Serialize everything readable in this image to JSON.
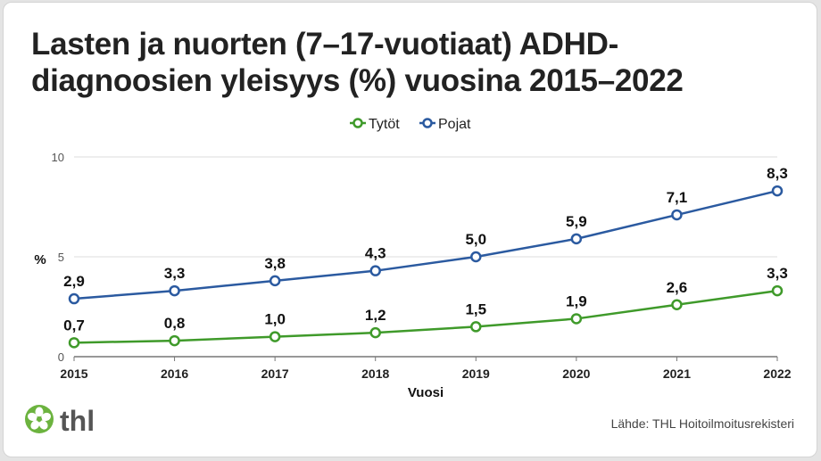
{
  "title_line1": "Lasten ja nuorten (7–17-vuotiaat) ADHD-",
  "title_line2": "diagnoosien yleisyys (%) vuosina 2015–2022",
  "source": "Lähde: THL Hoitoilmoitusrekisteri",
  "logo_text": "thl",
  "chart_data": {
    "type": "line",
    "xlabel": "Vuosi",
    "ylabel": "%",
    "x": [
      "2015",
      "2016",
      "2017",
      "2018",
      "2019",
      "2020",
      "2021",
      "2022"
    ],
    "ylim": [
      0,
      10
    ],
    "yticks": [
      "0",
      "5",
      "10"
    ],
    "grid": true,
    "legend": "top-center",
    "series": [
      {
        "name": "Tytöt",
        "color": "#3f9a2a",
        "values": [
          0.7,
          0.8,
          1.0,
          1.2,
          1.5,
          1.9,
          2.6,
          3.3
        ],
        "labels": [
          "0,7",
          "0,8",
          "1,0",
          "1,2",
          "1,5",
          "1,9",
          "2,6",
          "3,3"
        ]
      },
      {
        "name": "Pojat",
        "color": "#2b5aa0",
        "values": [
          2.9,
          3.3,
          3.8,
          4.3,
          5.0,
          5.9,
          7.1,
          8.3
        ],
        "labels": [
          "2,9",
          "3,3",
          "3,8",
          "4,3",
          "5,0",
          "5,9",
          "7,1",
          "8,3"
        ]
      }
    ]
  }
}
